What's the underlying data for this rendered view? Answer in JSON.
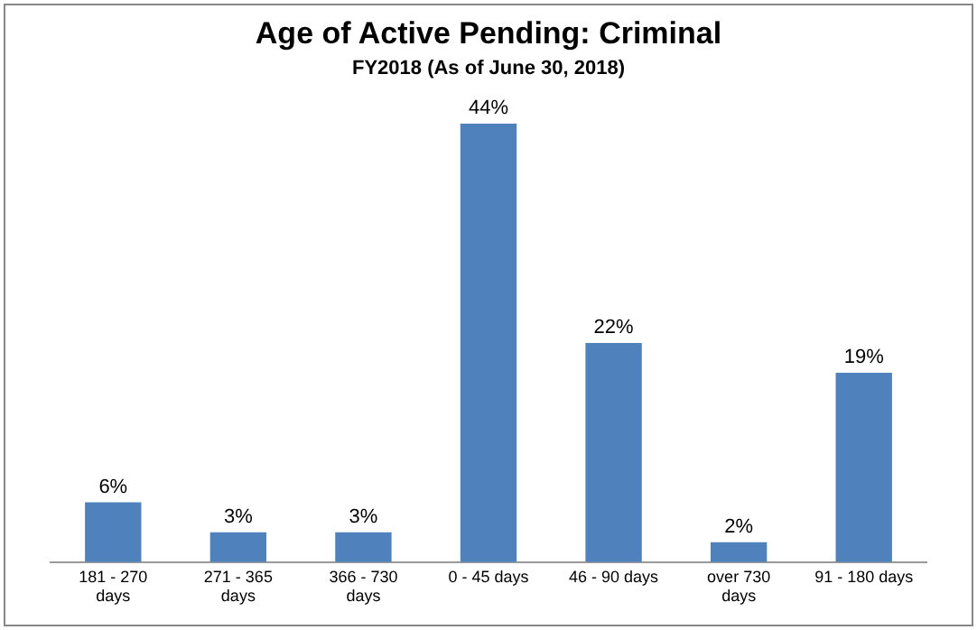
{
  "chart_data": {
    "type": "bar",
    "title": "Age of Active Pending: Criminal",
    "subtitle": "FY2018  (As of June 30, 2018)",
    "categories": [
      "181 - 270 days",
      "271 - 365 days",
      "366 - 730 days",
      "0 - 45 days",
      "46 - 90 days",
      "over 730 days",
      "91 - 180 days"
    ],
    "values": [
      6,
      3,
      3,
      44,
      22,
      2,
      19
    ],
    "color": "#4f81bd",
    "value_labels": [
      "6%",
      "3%",
      "3%",
      "44%",
      "22%",
      "2%",
      "19%"
    ],
    "grid": false,
    "legend": false
  }
}
